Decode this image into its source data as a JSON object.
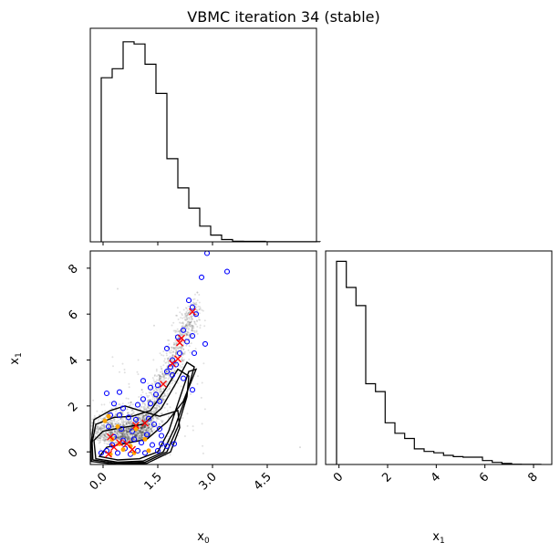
{
  "chart_data": {
    "type": "corner",
    "title": "VBMC iteration 34 (stable)",
    "variables": [
      {
        "name": "x",
        "sub": "0"
      },
      {
        "name": "x",
        "sub": "1"
      }
    ],
    "x0_ticks": [
      "0.0",
      "1.5",
      "3.0",
      "4.5"
    ],
    "x0_tick_values": [
      0.0,
      1.5,
      3.0,
      4.5
    ],
    "x0_range": [
      -0.35,
      5.85
    ],
    "x1_ticks": [
      "0",
      "2",
      "4",
      "6",
      "8"
    ],
    "x1_tick_values": [
      0,
      2,
      4,
      6,
      8
    ],
    "x1_range": [
      -0.55,
      8.75
    ],
    "hist_x0": {
      "edges": [
        -0.05,
        0.25,
        0.55,
        0.85,
        1.15,
        1.45,
        1.75,
        2.05,
        2.35,
        2.65,
        2.95,
        3.25,
        3.55,
        3.85,
        4.15,
        4.45,
        4.75,
        5.05,
        5.35,
        5.65,
        5.95
      ],
      "values": [
        0.73,
        0.77,
        0.89,
        0.88,
        0.79,
        0.66,
        0.37,
        0.24,
        0.15,
        0.07,
        0.03,
        0.01,
        0.003,
        0.002,
        0.002,
        0.001,
        0.001,
        0.001,
        0.001,
        0.001
      ],
      "ymax": 0.95
    },
    "hist_x1": {
      "edges": [
        -0.1,
        0.3,
        0.7,
        1.1,
        1.5,
        1.9,
        2.3,
        2.7,
        3.1,
        3.5,
        3.9,
        4.3,
        4.7,
        5.1,
        5.5,
        5.9,
        6.3,
        6.7,
        7.1,
        7.5,
        7.9,
        8.3
      ],
      "values": [
        0.78,
        0.68,
        0.61,
        0.31,
        0.28,
        0.16,
        0.12,
        0.1,
        0.06,
        0.05,
        0.045,
        0.035,
        0.03,
        0.028,
        0.028,
        0.015,
        0.008,
        0.004,
        0.001,
        0.0005,
        0.0002
      ],
      "ymax": 0.82
    },
    "contours": [
      [
        [
          -0.1,
          -0.2
        ],
        [
          0.4,
          -0.35
        ],
        [
          1.0,
          -0.3
        ],
        [
          1.5,
          0.0
        ],
        [
          1.8,
          0.9
        ],
        [
          2.05,
          2.1
        ],
        [
          2.35,
          3.5
        ],
        [
          2.55,
          3.6
        ],
        [
          2.2,
          2.2
        ],
        [
          1.75,
          1.3
        ],
        [
          1.2,
          0.55
        ],
        [
          0.55,
          0.35
        ],
        [
          0.1,
          0.2
        ],
        [
          -0.1,
          -0.2
        ]
      ],
      [
        [
          -0.2,
          -0.3
        ],
        [
          0.4,
          -0.45
        ],
        [
          1.1,
          -0.4
        ],
        [
          1.65,
          0.0
        ],
        [
          1.95,
          1.0
        ],
        [
          2.25,
          2.3
        ],
        [
          2.5,
          3.7
        ],
        [
          2.3,
          3.9
        ],
        [
          2.0,
          3.0
        ],
        [
          1.6,
          1.9
        ],
        [
          1.1,
          1.2
        ],
        [
          0.5,
          1.05
        ],
        [
          0.0,
          0.9
        ],
        [
          -0.25,
          0.5
        ],
        [
          -0.2,
          -0.3
        ]
      ],
      [
        [
          -0.28,
          -0.35
        ],
        [
          0.4,
          -0.5
        ],
        [
          1.15,
          -0.45
        ],
        [
          1.75,
          0.0
        ],
        [
          2.05,
          1.1
        ],
        [
          2.3,
          2.4
        ],
        [
          2.35,
          3.3
        ],
        [
          2.05,
          3.6
        ],
        [
          1.7,
          2.7
        ],
        [
          1.3,
          1.8
        ],
        [
          0.8,
          1.55
        ],
        [
          0.3,
          1.5
        ],
        [
          -0.2,
          1.2
        ],
        [
          -0.3,
          0.4
        ],
        [
          -0.28,
          -0.35
        ]
      ],
      [
        [
          -0.32,
          -0.42
        ],
        [
          0.4,
          -0.55
        ],
        [
          1.2,
          -0.5
        ],
        [
          1.85,
          0.0
        ],
        [
          2.1,
          1.05
        ],
        [
          2.05,
          1.8
        ],
        [
          1.55,
          1.55
        ],
        [
          1.1,
          1.75
        ],
        [
          0.6,
          2.0
        ],
        [
          0.2,
          1.8
        ],
        [
          -0.25,
          1.4
        ],
        [
          -0.33,
          0.3
        ],
        [
          -0.32,
          -0.42
        ]
      ]
    ],
    "training_points_blue": [
      [
        2.85,
        8.65
      ],
      [
        3.4,
        7.85
      ],
      [
        2.7,
        7.6
      ],
      [
        2.35,
        6.6
      ],
      [
        2.45,
        6.3
      ],
      [
        2.55,
        6.0
      ],
      [
        2.2,
        5.3
      ],
      [
        2.45,
        5.05
      ],
      [
        2.05,
        5.0
      ],
      [
        2.3,
        4.8
      ],
      [
        2.8,
        4.7
      ],
      [
        1.75,
        4.5
      ],
      [
        2.1,
        4.3
      ],
      [
        1.9,
        4.0
      ],
      [
        2.0,
        3.8
      ],
      [
        1.85,
        3.7
      ],
      [
        1.75,
        3.5
      ],
      [
        1.9,
        3.35
      ],
      [
        2.2,
        3.2
      ],
      [
        1.1,
        3.1
      ],
      [
        1.5,
        2.9
      ],
      [
        1.3,
        2.8
      ],
      [
        1.45,
        2.5
      ],
      [
        1.55,
        2.2
      ],
      [
        1.3,
        2.1
      ],
      [
        1.1,
        2.3
      ],
      [
        0.95,
        2.05
      ],
      [
        0.45,
        2.6
      ],
      [
        0.1,
        2.55
      ],
      [
        0.3,
        2.1
      ],
      [
        0.55,
        1.9
      ],
      [
        0.2,
        1.6
      ],
      [
        0.45,
        1.6
      ],
      [
        0.7,
        1.5
      ],
      [
        0.9,
        1.4
      ],
      [
        1.25,
        1.45
      ],
      [
        1.4,
        1.2
      ],
      [
        1.55,
        1.0
      ],
      [
        1.6,
        0.7
      ],
      [
        1.2,
        0.75
      ],
      [
        0.8,
        0.9
      ],
      [
        0.5,
        1.0
      ],
      [
        0.15,
        1.1
      ],
      [
        0.3,
        0.65
      ],
      [
        0.55,
        0.5
      ],
      [
        0.85,
        0.55
      ],
      [
        1.05,
        0.4
      ],
      [
        1.35,
        0.3
      ],
      [
        1.6,
        0.35
      ],
      [
        1.75,
        0.25
      ],
      [
        1.5,
        0.05
      ],
      [
        0.95,
        0.05
      ],
      [
        0.6,
        0.15
      ],
      [
        0.25,
        0.3
      ],
      [
        0.1,
        0.05
      ],
      [
        -0.05,
        -0.05
      ],
      [
        0.4,
        -0.05
      ],
      [
        0.75,
        -0.1
      ],
      [
        1.15,
        -0.05
      ],
      [
        1.95,
        0.35
      ],
      [
        2.45,
        2.7
      ],
      [
        2.5,
        4.3
      ]
    ],
    "training_points_orange": [
      [
        0.15,
        1.55
      ],
      [
        0.05,
        1.35
      ],
      [
        0.4,
        1.1
      ],
      [
        0.9,
        1.0
      ],
      [
        0.25,
        0.55
      ],
      [
        0.55,
        0.1
      ],
      [
        0.75,
        0.25
      ],
      [
        0.2,
        -0.1
      ],
      [
        0.45,
        0.35
      ],
      [
        1.15,
        0.55
      ],
      [
        1.25,
        0.05
      ],
      [
        0.85,
        -0.05
      ]
    ],
    "inducing_points_red": [
      [
        2.45,
        6.1
      ],
      [
        2.15,
        4.95
      ],
      [
        2.1,
        4.75
      ],
      [
        2.05,
        4.05
      ],
      [
        1.9,
        3.85
      ],
      [
        1.65,
        2.95
      ],
      [
        1.15,
        1.25
      ],
      [
        0.9,
        1.15
      ],
      [
        0.2,
        0.65
      ],
      [
        0.45,
        0.4
      ],
      [
        0.65,
        0.35
      ],
      [
        0.3,
        0.2
      ],
      [
        0.8,
        0.1
      ],
      [
        0.15,
        -0.1
      ]
    ],
    "colors": {
      "line": "#000000",
      "scatter": "#000000",
      "train_blue": "#0000ff",
      "train_orange": "#ffa500",
      "inducing": "#ff0000"
    }
  }
}
